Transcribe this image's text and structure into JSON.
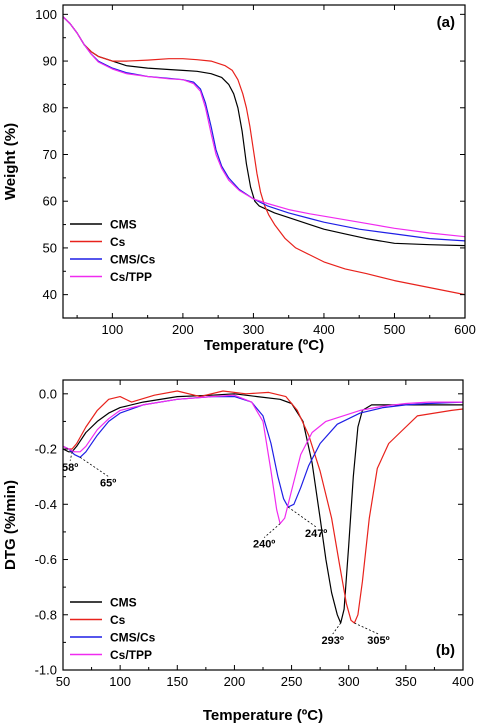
{
  "chart_data": [
    {
      "type": "line",
      "panel_label": "(a)",
      "xlabel": "Temperature (ºC)",
      "ylabel": "Weight (%)",
      "xlim": [
        30,
        600
      ],
      "ylim": [
        35,
        102
      ],
      "x_ticks": [
        100,
        200,
        300,
        400,
        500,
        600
      ],
      "x_tick_labels": [
        "100",
        "200",
        "300",
        "400",
        "500",
        "600"
      ],
      "y_ticks": [
        40,
        50,
        60,
        70,
        80,
        90,
        100
      ],
      "y_tick_labels": [
        "40",
        "50",
        "60",
        "70",
        "80",
        "90",
        "100"
      ],
      "legend_position": "bottom-left",
      "grid": false,
      "series": [
        {
          "name": "CMS",
          "color": "#000000",
          "x": [
            30,
            40,
            50,
            60,
            70,
            80,
            100,
            120,
            150,
            180,
            200,
            220,
            240,
            255,
            265,
            272,
            278,
            284,
            290,
            296,
            302,
            308,
            315,
            330,
            350,
            380,
            400,
            430,
            460,
            500,
            550,
            600
          ],
          "y": [
            99.5,
            98,
            96,
            93.5,
            92,
            91,
            90,
            89,
            88.5,
            88.2,
            88,
            87.8,
            87.3,
            86.5,
            85,
            83,
            80,
            75,
            68,
            63,
            60,
            59,
            58.5,
            57.5,
            56.5,
            55,
            54,
            53,
            52,
            51,
            50.7,
            50.5
          ]
        },
        {
          "name": "Cs",
          "color": "#e8221c",
          "x": [
            30,
            40,
            50,
            60,
            70,
            80,
            100,
            120,
            150,
            180,
            200,
            220,
            240,
            260,
            270,
            278,
            285,
            290,
            295,
            300,
            305,
            310,
            316,
            322,
            330,
            345,
            360,
            380,
            400,
            430,
            460,
            500,
            550,
            600
          ],
          "y": [
            99.5,
            98,
            96,
            93.5,
            92,
            91,
            90,
            90,
            90.2,
            90.5,
            90.5,
            90.3,
            90,
            89,
            88,
            86,
            83,
            80,
            76,
            71,
            66,
            62,
            59,
            57,
            55,
            52,
            50,
            48.5,
            47,
            45.5,
            44.5,
            43,
            41.5,
            40
          ]
        },
        {
          "name": "CMS/Cs",
          "color": "#1f1fe6",
          "x": [
            30,
            40,
            50,
            60,
            70,
            80,
            100,
            120,
            150,
            180,
            200,
            215,
            225,
            232,
            240,
            247,
            255,
            265,
            280,
            300,
            320,
            350,
            380,
            400,
            450,
            500,
            550,
            600
          ],
          "y": [
            99.5,
            98,
            96,
            93.5,
            91.5,
            90,
            88.5,
            87.5,
            86.7,
            86.3,
            86,
            85.5,
            84,
            81,
            76,
            71,
            67.5,
            65,
            62.5,
            60.5,
            59,
            57.5,
            56.3,
            55.5,
            54,
            53,
            52,
            51.5
          ]
        },
        {
          "name": "Cs/TPP",
          "color": "#f02bf0",
          "x": [
            30,
            40,
            50,
            60,
            70,
            80,
            100,
            120,
            150,
            180,
            200,
            215,
            225,
            232,
            240,
            247,
            255,
            265,
            280,
            300,
            320,
            350,
            380,
            400,
            450,
            500,
            550,
            600
          ],
          "y": [
            99.5,
            98,
            96,
            93.5,
            91.5,
            89.8,
            88.3,
            87.3,
            86.7,
            86.2,
            86,
            85.2,
            83.5,
            80,
            74.5,
            70,
            67,
            64.5,
            62.3,
            60.5,
            59.5,
            58.2,
            57.3,
            56.8,
            55.5,
            54.2,
            53.2,
            52.4
          ]
        }
      ]
    },
    {
      "type": "line",
      "panel_label": "(b)",
      "xlabel": "Temperature (ºC)",
      "ylabel": "DTG (%/min)",
      "xlim": [
        50,
        400
      ],
      "ylim": [
        -1.0,
        0.05
      ],
      "x_ticks": [
        50,
        100,
        150,
        200,
        250,
        300,
        350,
        400
      ],
      "x_tick_labels": [
        "50",
        "100",
        "150",
        "200",
        "250",
        "300",
        "350",
        "400"
      ],
      "y_ticks": [
        -1.0,
        -0.8,
        -0.6,
        -0.4,
        -0.2,
        0.0
      ],
      "y_tick_labels": [
        "-1.0",
        "-0.8",
        "-0.6",
        "-0.4",
        "-0.2",
        "0.0"
      ],
      "legend_position": "bottom-left",
      "grid": false,
      "annotations": [
        {
          "text": "58º",
          "x": 58,
          "y": -0.21
        },
        {
          "text": "65º",
          "x": 65,
          "y": -0.23
        },
        {
          "text": "240º",
          "x": 240,
          "y": -0.47
        },
        {
          "text": "247º",
          "x": 247,
          "y": -0.41
        },
        {
          "text": "293º",
          "x": 293,
          "y": -0.83
        },
        {
          "text": "305º",
          "x": 305,
          "y": -0.83
        }
      ],
      "series": [
        {
          "name": "CMS",
          "color": "#000000",
          "x": [
            50,
            55,
            58,
            62,
            70,
            80,
            90,
            100,
            120,
            150,
            180,
            200,
            220,
            240,
            250,
            260,
            268,
            275,
            280,
            285,
            290,
            293,
            296,
            300,
            304,
            308,
            312,
            320,
            340,
            360,
            380,
            400
          ],
          "y": [
            -0.2,
            -0.21,
            -0.21,
            -0.19,
            -0.14,
            -0.1,
            -0.07,
            -0.05,
            -0.03,
            -0.01,
            -0.005,
            0.0,
            -0.01,
            -0.02,
            -0.035,
            -0.1,
            -0.25,
            -0.45,
            -0.6,
            -0.72,
            -0.8,
            -0.83,
            -0.78,
            -0.55,
            -0.3,
            -0.12,
            -0.06,
            -0.04,
            -0.04,
            -0.04,
            -0.04,
            -0.04
          ]
        },
        {
          "name": "Cs",
          "color": "#e8221c",
          "x": [
            50,
            55,
            58,
            62,
            70,
            80,
            90,
            100,
            110,
            130,
            150,
            170,
            190,
            210,
            230,
            245,
            255,
            265,
            275,
            285,
            292,
            298,
            302,
            305,
            308,
            312,
            318,
            325,
            335,
            345,
            360,
            375,
            390,
            400
          ],
          "y": [
            -0.19,
            -0.2,
            -0.2,
            -0.18,
            -0.12,
            -0.06,
            -0.02,
            -0.01,
            -0.03,
            -0.005,
            0.01,
            -0.01,
            0.01,
            0.0,
            0.005,
            -0.01,
            -0.06,
            -0.15,
            -0.28,
            -0.45,
            -0.62,
            -0.76,
            -0.82,
            -0.83,
            -0.8,
            -0.68,
            -0.45,
            -0.27,
            -0.18,
            -0.14,
            -0.08,
            -0.07,
            -0.06,
            -0.055
          ]
        },
        {
          "name": "CMS/Cs",
          "color": "#1f1fe6",
          "x": [
            50,
            55,
            60,
            65,
            70,
            80,
            90,
            100,
            120,
            150,
            180,
            200,
            215,
            225,
            232,
            238,
            243,
            247,
            252,
            258,
            265,
            275,
            290,
            310,
            330,
            350,
            370,
            400
          ],
          "y": [
            -0.19,
            -0.2,
            -0.22,
            -0.23,
            -0.21,
            -0.15,
            -0.1,
            -0.07,
            -0.04,
            -0.02,
            -0.01,
            -0.01,
            -0.03,
            -0.08,
            -0.18,
            -0.3,
            -0.38,
            -0.41,
            -0.4,
            -0.34,
            -0.26,
            -0.18,
            -0.11,
            -0.07,
            -0.05,
            -0.04,
            -0.035,
            -0.03
          ]
        },
        {
          "name": "Cs/TPP",
          "color": "#f02bf0",
          "x": [
            50,
            55,
            60,
            65,
            70,
            80,
            90,
            100,
            120,
            150,
            180,
            200,
            215,
            225,
            232,
            237,
            240,
            244,
            250,
            258,
            268,
            280,
            295,
            310,
            330,
            350,
            370,
            400
          ],
          "y": [
            -0.19,
            -0.2,
            -0.21,
            -0.21,
            -0.19,
            -0.13,
            -0.09,
            -0.06,
            -0.04,
            -0.02,
            -0.01,
            -0.005,
            -0.03,
            -0.1,
            -0.28,
            -0.42,
            -0.47,
            -0.45,
            -0.35,
            -0.22,
            -0.14,
            -0.1,
            -0.08,
            -0.06,
            -0.045,
            -0.035,
            -0.03,
            -0.03
          ]
        }
      ]
    }
  ]
}
